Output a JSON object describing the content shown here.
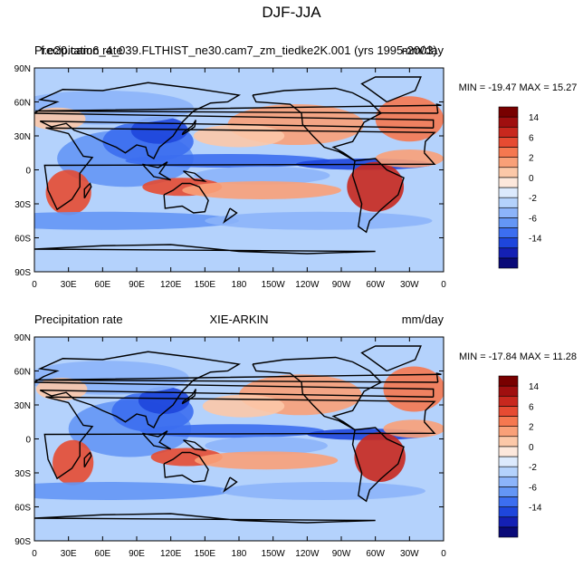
{
  "figure_title": "DJF-JJA",
  "colorbar": {
    "colors": [
      "#0a0a78",
      "#1420b4",
      "#1e46dc",
      "#3c6ef0",
      "#6496f5",
      "#8cb4fa",
      "#b4d2fc",
      "#dceafd",
      "#fde8dc",
      "#fcc8a8",
      "#f9a078",
      "#f57850",
      "#e64b32",
      "#c8281e",
      "#a00f0f",
      "#780000"
    ],
    "labels": [
      "14",
      "6",
      "2",
      "0",
      "-2",
      "-6",
      "-14"
    ]
  },
  "chart_data": [
    {
      "type": "contour-map",
      "title": "",
      "left_title": "Precipitation rate",
      "center_title": "f.e20.cam6_4_039.FLTHIST_ne30.cam7_zm_tiedke2K.001 (yrs 1995-2003)",
      "right_title": "mm/day",
      "stats": "MIN = -19.47 MAX =  15.27",
      "min": -19.47,
      "max": 15.27,
      "x_ticks": [
        "0",
        "30E",
        "60E",
        "90E",
        "120E",
        "150E",
        "180",
        "150W",
        "120W",
        "90W",
        "60W",
        "30W",
        "0"
      ],
      "y_ticks": [
        "90N",
        "60N",
        "30N",
        "0",
        "30S",
        "60S",
        "90S"
      ],
      "xlim": [
        0,
        360
      ],
      "ylim": [
        -90,
        90
      ]
    },
    {
      "type": "contour-map",
      "title": "",
      "left_title": "Precipitation rate",
      "center_title": "XIE-ARKIN",
      "right_title": "mm/day",
      "stats": "MIN = -17.84 MAX =  11.28",
      "min": -17.84,
      "max": 11.28,
      "x_ticks": [
        "0",
        "30E",
        "60E",
        "90E",
        "120E",
        "150E",
        "180",
        "150W",
        "120W",
        "90W",
        "60W",
        "30W",
        "0"
      ],
      "y_ticks": [
        "90N",
        "60N",
        "30N",
        "0",
        "30S",
        "60S",
        "90S"
      ],
      "xlim": [
        0,
        360
      ],
      "ylim": [
        -90,
        90
      ]
    }
  ]
}
